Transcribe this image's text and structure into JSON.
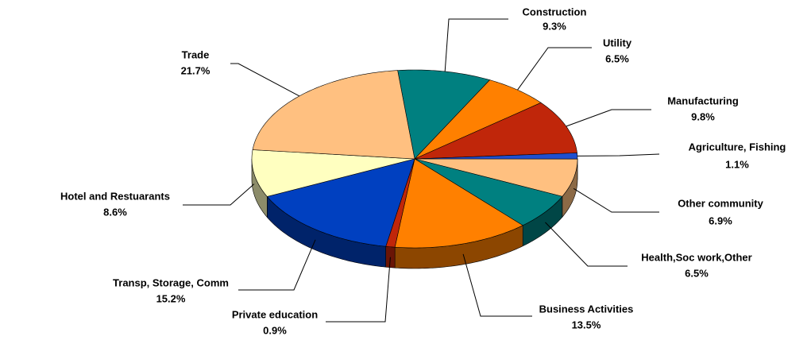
{
  "chart_data": {
    "type": "pie3d",
    "categories": [
      "Construction",
      "Utility",
      "Manufacturing",
      "Agriculture, Fishing",
      "Other community",
      "Health,Soc work,Other",
      "Business Activities",
      "Private education",
      "Transp, Storage, Comm",
      "Hotel and Restuarants",
      "Trade"
    ],
    "values": [
      9.3,
      6.5,
      9.8,
      1.1,
      6.9,
      6.5,
      13.5,
      0.9,
      15.2,
      8.6,
      21.7
    ],
    "value_labels": [
      "9.3%",
      "6.5%",
      "9.8%",
      "1.1%",
      "6.9%",
      "6.5%",
      "13.5%",
      "0.9%",
      "15.2%",
      "8.6%",
      "21.7%"
    ],
    "colors": [
      "#008080",
      "#ff8000",
      "#c0260a",
      "#1f4fcf",
      "#ffc080",
      "#008080",
      "#ff8000",
      "#c0260a",
      "#0040c0",
      "#ffffc0",
      "#ffc080"
    ]
  }
}
